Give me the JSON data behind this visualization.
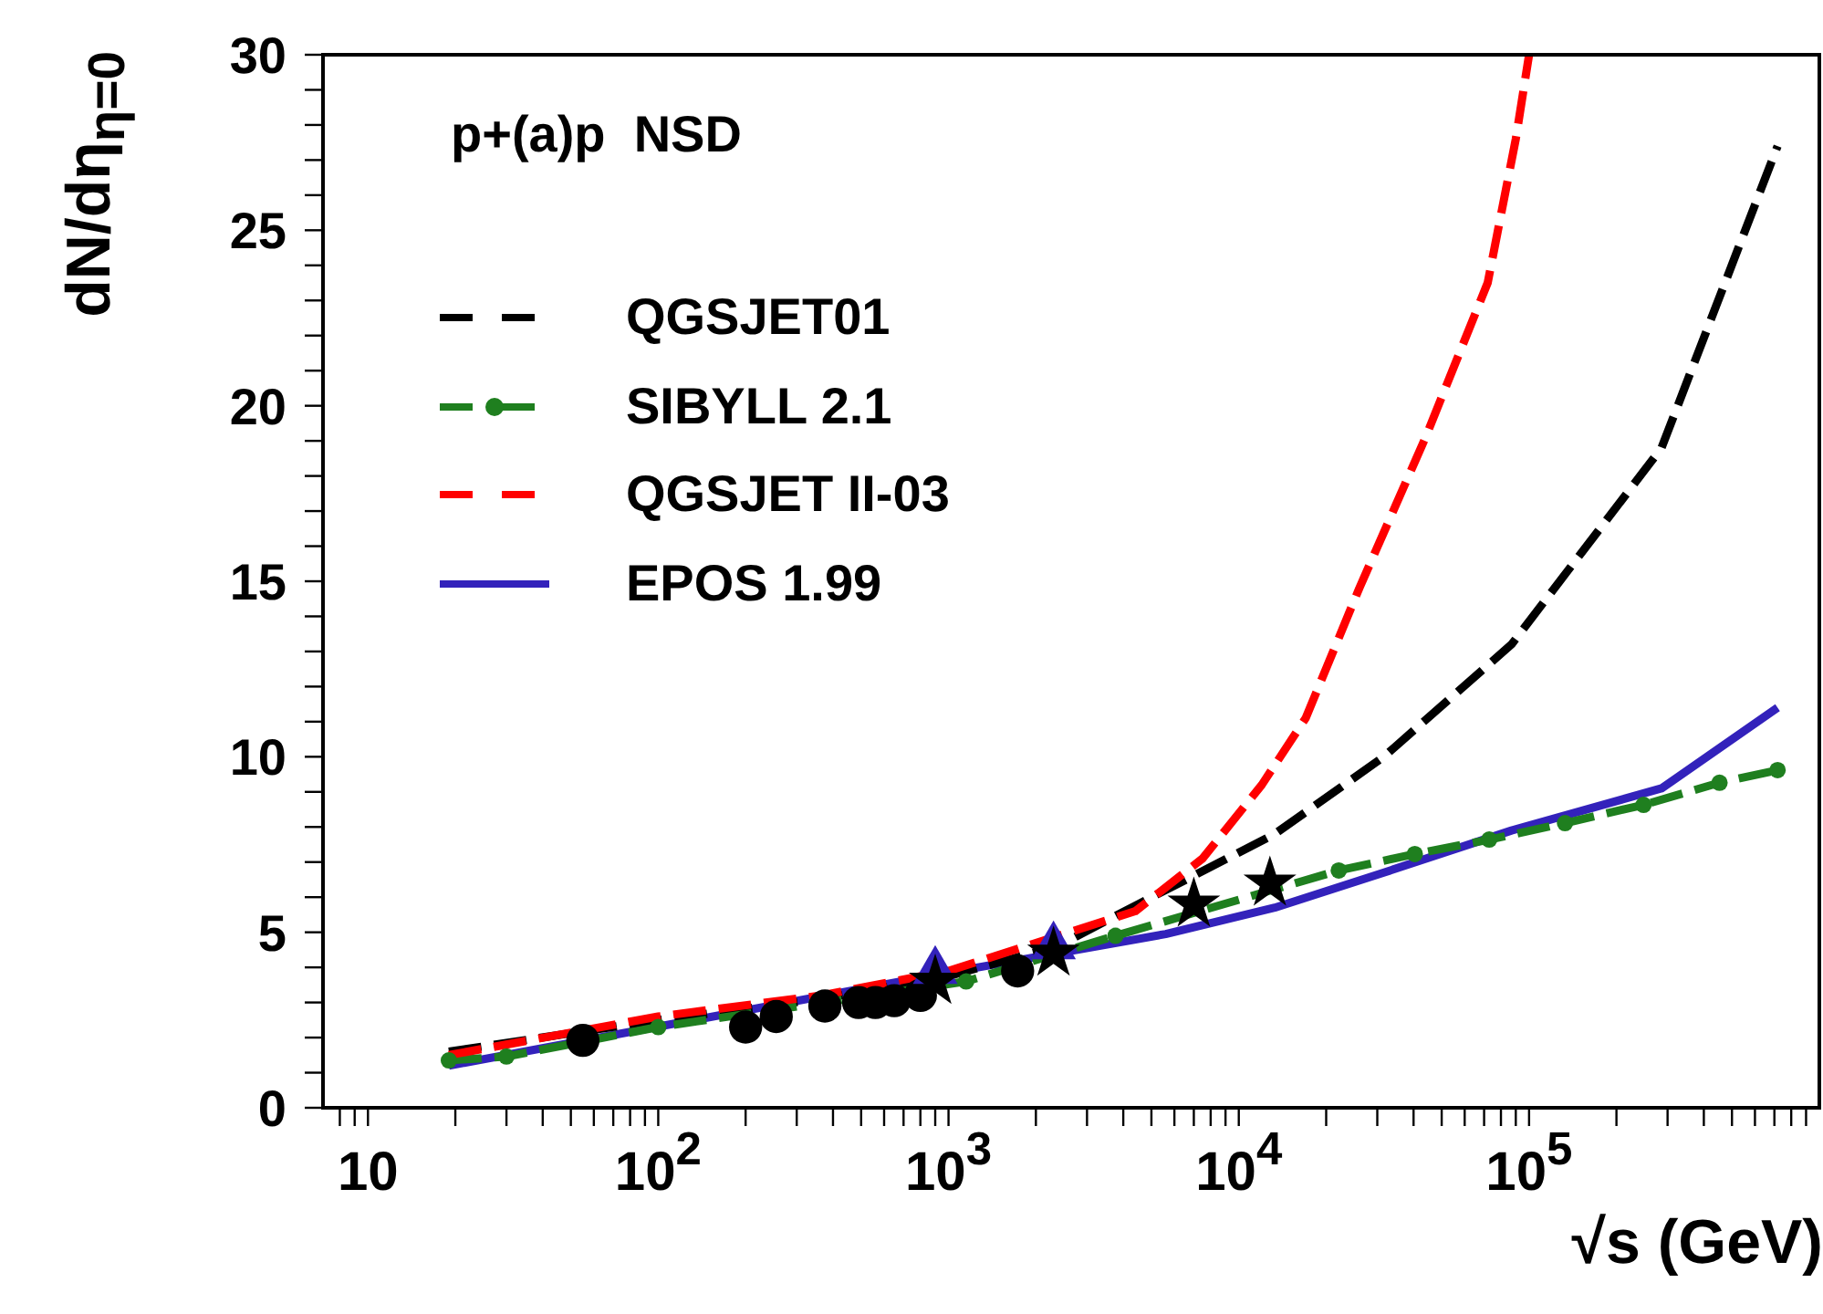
{
  "chart_data": {
    "type": "line",
    "xlabel": "√s (GeV)",
    "ylabel": "dN/dη$_{η=0}$",
    "annotations": [
      "p+(a)p  NSD"
    ],
    "log": "x",
    "xlim": [
      7,
      1000000
    ],
    "ylim": [
      0,
      30
    ],
    "xticks": [
      {
        "value": 8,
        "label": null
      },
      {
        "value": 9,
        "label": null
      },
      10,
      {
        "value": 20,
        "label": null
      },
      {
        "value": 30,
        "label": null
      },
      {
        "value": 40,
        "label": null
      },
      {
        "value": 50,
        "label": null
      },
      {
        "value": 60,
        "label": null
      },
      {
        "value": 70,
        "label": null
      },
      {
        "value": 80,
        "label": null
      },
      {
        "value": 90,
        "label": null
      },
      {
        "value": 100,
        "label": "10$^{2}$"
      },
      {
        "value": 200,
        "label": null
      },
      {
        "value": 300,
        "label": null
      },
      {
        "value": 400,
        "label": null
      },
      {
        "value": 500,
        "label": null
      },
      {
        "value": 600,
        "label": null
      },
      {
        "value": 700,
        "label": null
      },
      {
        "value": 800,
        "label": null
      },
      {
        "value": 900,
        "label": null
      },
      {
        "value": 1000,
        "label": "10$^{3}$"
      },
      {
        "value": 2000,
        "label": null
      },
      {
        "value": 3000,
        "label": null
      },
      {
        "value": 4000,
        "label": null
      },
      {
        "value": 5000,
        "label": null
      },
      {
        "value": 6000,
        "label": null
      },
      {
        "value": 7000,
        "label": null
      },
      {
        "value": 8000,
        "label": null
      },
      {
        "value": 9000,
        "label": null
      },
      {
        "value": 10000,
        "label": "10$^{4}$"
      },
      {
        "value": 20000,
        "label": null
      },
      {
        "value": 30000,
        "label": null
      },
      {
        "value": 40000,
        "label": null
      },
      {
        "value": 50000,
        "label": null
      },
      {
        "value": 60000,
        "label": null
      },
      {
        "value": 70000,
        "label": null
      },
      {
        "value": 80000,
        "label": null
      },
      {
        "value": 90000,
        "label": null
      },
      {
        "value": 100000,
        "label": "10$^{5}$"
      },
      {
        "value": 200000,
        "label": null
      },
      {
        "value": 300000,
        "label": null
      },
      {
        "value": 400000,
        "label": null
      },
      {
        "value": 500000,
        "label": null
      },
      {
        "value": 600000,
        "label": null
      },
      {
        "value": 700000,
        "label": null
      },
      {
        "value": 800000,
        "label": null
      },
      {
        "value": 900000,
        "label": null
      }
    ],
    "yticks": [
      0,
      {
        "value": 1,
        "label": null
      },
      {
        "value": 2,
        "label": null
      },
      {
        "value": 3,
        "label": null
      },
      {
        "value": 4,
        "label": null
      },
      5,
      {
        "value": 6,
        "label": null
      },
      {
        "value": 7,
        "label": null
      },
      {
        "value": 8,
        "label": null
      },
      {
        "value": 9,
        "label": null
      },
      10,
      {
        "value": 11,
        "label": null
      },
      {
        "value": 12,
        "label": null
      },
      {
        "value": 13,
        "label": null
      },
      {
        "value": 14,
        "label": null
      },
      15,
      {
        "value": 16,
        "label": null
      },
      {
        "value": 17,
        "label": null
      },
      {
        "value": 18,
        "label": null
      },
      {
        "value": 19,
        "label": null
      },
      20,
      {
        "value": 21,
        "label": null
      },
      {
        "value": 22,
        "label": null
      },
      {
        "value": 23,
        "label": null
      },
      {
        "value": 24,
        "label": null
      },
      25,
      {
        "value": 26,
        "label": null
      },
      {
        "value": 27,
        "label": null
      },
      {
        "value": 28,
        "label": null
      },
      {
        "value": 29,
        "label": null
      },
      30
    ],
    "legend": "top left",
    "series": [
      {
        "name": "QGSJET01",
        "color": "#000000",
        "line_style": "dashed",
        "marker": "none",
        "x": [
          19,
          100,
          365,
          1000,
          2370,
          4500,
          13300,
          31600,
          87000,
          286000,
          718000
        ],
        "values": [
          1.6,
          2.5,
          3.1,
          3.75,
          4.6,
          5.8,
          7.8,
          10.0,
          13.2,
          18.8,
          27.4
        ]
      },
      {
        "name": "SIBYLL 2.1",
        "color": "#1f7f1f",
        "line_style": "dashed",
        "marker": "circle",
        "x": [
          19,
          30,
          100,
          1150,
          3760,
          22100,
          40400,
          72900,
          133000,
          248000,
          453000,
          718000
        ],
        "values": [
          1.35,
          1.46,
          2.3,
          3.6,
          4.9,
          6.76,
          7.23,
          7.64,
          8.11,
          8.63,
          9.26,
          9.62
        ]
      },
      {
        "name": "QGSJET II-03",
        "color": "#ff0000",
        "line_style": "dashed",
        "marker": "none",
        "x": [
          19,
          100,
          365,
          1000,
          4400,
          7500,
          12000,
          17000,
          26000,
          44000,
          72000,
          90000,
          100000
        ],
        "values": [
          1.5,
          2.6,
          3.2,
          3.9,
          5.6,
          7.1,
          9.2,
          11.1,
          14.8,
          19.1,
          23.5,
          27.6,
          30
        ]
      },
      {
        "name": "EPOS 1.99",
        "color": "#3322bb",
        "line_style": "solid",
        "marker": "none",
        "x": [
          19,
          1000,
          5600,
          13300,
          31600,
          87000,
          286000,
          718000
        ],
        "values": [
          1.2,
          3.85,
          4.95,
          5.7,
          6.7,
          7.9,
          9.1,
          11.4
        ]
      },
      {
        "type": "scatter",
        "color": "#000000",
        "marker": "circle",
        "x": [
          55,
          200,
          255,
          375,
          490,
          560,
          650,
          800,
          1730
        ],
        "values": [
          1.92,
          2.3,
          2.6,
          2.9,
          3.0,
          3.0,
          3.05,
          3.2,
          3.9
        ]
      },
      {
        "type": "scatter",
        "color": "#3322bb",
        "marker": "triangle",
        "x": [
          900,
          2300
        ],
        "values": [
          3.9,
          4.6
        ]
      },
      {
        "type": "scatter",
        "color": "#000000",
        "marker": "star",
        "x": [
          900,
          2300,
          7000,
          12800
        ],
        "values": [
          3.6,
          4.4,
          5.8,
          6.4
        ]
      }
    ]
  }
}
